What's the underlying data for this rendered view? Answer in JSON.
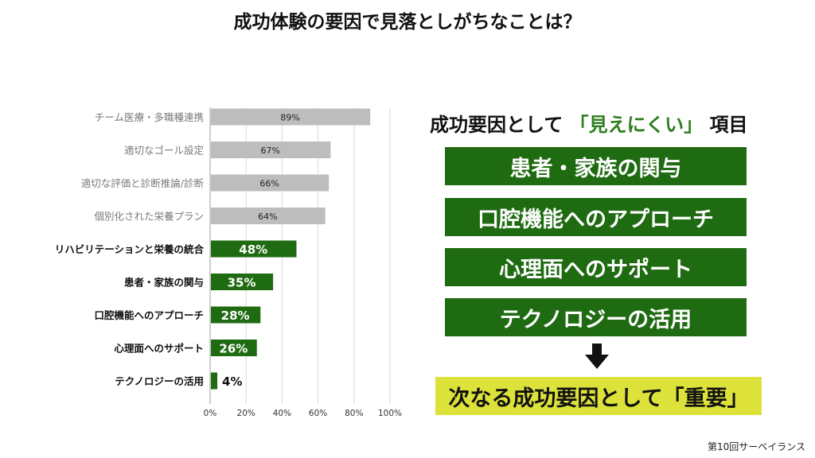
{
  "title": "成功体験の要因で見落としがちなことは？",
  "chart_data": {
    "type": "bar",
    "orientation": "horizontal",
    "categories": [
      "チーム医療・多職種連携",
      "適切なゴール設定",
      "適切な評価と診断推論/診断",
      "個別化された栄養プラン",
      "リハビリテーションと栄養の統合",
      "患者・家族の関与",
      "口腔機能へのアプローチ",
      "心理面へのサポート",
      "テクノロジーの活用"
    ],
    "values": [
      89,
      67,
      66,
      64,
      48,
      35,
      28,
      26,
      4
    ],
    "value_labels": [
      "89%",
      "67%",
      "66%",
      "64%",
      "48%",
      "35%",
      "28%",
      "26%",
      "4%"
    ],
    "highlighted": [
      false,
      false,
      false,
      false,
      true,
      true,
      true,
      true,
      true
    ],
    "xlim": [
      0,
      100
    ],
    "xticks": [
      "0%",
      "20%",
      "40%",
      "60%",
      "80%",
      "100%"
    ],
    "grid": true,
    "colors": {
      "normal": "#bdbdbd",
      "highlight": "#1f6b12"
    }
  },
  "panel": {
    "heading_prefix": "成功要因として",
    "heading_accent": "「見えにくい」",
    "heading_suffix": "項目",
    "items": [
      "患者・家族の関与",
      "口腔機能へのアプローチ",
      "心理面へのサポート",
      "テクノロジーの活用"
    ],
    "arrow_icon": "down-arrow-icon",
    "conclusion": "次なる成功要因として「重要」"
  },
  "footer": "第10回サーベイランス"
}
